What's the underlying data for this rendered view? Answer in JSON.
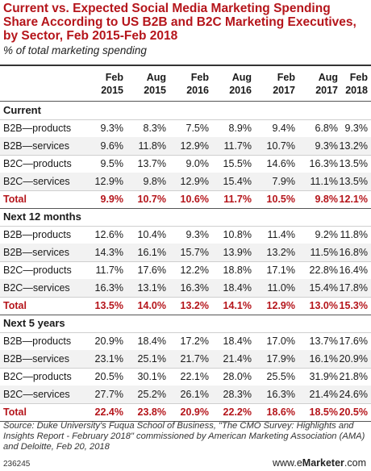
{
  "chart_data": {
    "type": "table",
    "title": "Current vs. Expected Social Media Marketing Spending Share According to US B2B and B2C Marketing Executives, by Sector, Feb 2015-Feb 2018",
    "subtitle": "% of total marketing spending",
    "columns": [
      [
        "Feb",
        "2015"
      ],
      [
        "Aug",
        "2015"
      ],
      [
        "Feb",
        "2016"
      ],
      [
        "Aug",
        "2016"
      ],
      [
        "Feb",
        "2017"
      ],
      [
        "Aug",
        "2017"
      ],
      [
        "Feb",
        "2018"
      ]
    ],
    "sections": [
      {
        "name": "Current",
        "rows": [
          {
            "label": "B2B—products",
            "values": [
              "9.3%",
              "8.3%",
              "7.5%",
              "8.9%",
              "9.4%",
              "6.8%",
              "9.3%"
            ]
          },
          {
            "label": "B2B—services",
            "values": [
              "9.6%",
              "11.8%",
              "12.9%",
              "11.7%",
              "10.7%",
              "9.3%",
              "13.2%"
            ]
          },
          {
            "label": "B2C—products",
            "values": [
              "9.5%",
              "13.7%",
              "9.0%",
              "15.5%",
              "14.6%",
              "16.3%",
              "13.5%"
            ]
          },
          {
            "label": "B2C—services",
            "values": [
              "12.9%",
              "9.8%",
              "12.9%",
              "15.4%",
              "7.9%",
              "11.1%",
              "13.5%"
            ]
          }
        ],
        "total": {
          "label": "Total",
          "values": [
            "9.9%",
            "10.7%",
            "10.6%",
            "11.7%",
            "10.5%",
            "9.8%",
            "12.1%"
          ]
        }
      },
      {
        "name": "Next 12 months",
        "rows": [
          {
            "label": "B2B—products",
            "values": [
              "12.6%",
              "10.4%",
              "9.3%",
              "10.8%",
              "11.4%",
              "9.2%",
              "11.8%"
            ]
          },
          {
            "label": "B2B—services",
            "values": [
              "14.3%",
              "16.1%",
              "15.7%",
              "13.9%",
              "13.2%",
              "11.5%",
              "16.8%"
            ]
          },
          {
            "label": "B2C—products",
            "values": [
              "11.7%",
              "17.6%",
              "12.2%",
              "18.8%",
              "17.1%",
              "22.8%",
              "16.4%"
            ]
          },
          {
            "label": "B2C—services",
            "values": [
              "16.3%",
              "13.1%",
              "16.3%",
              "18.4%",
              "11.0%",
              "15.4%",
              "17.8%"
            ]
          }
        ],
        "total": {
          "label": "Total",
          "values": [
            "13.5%",
            "14.0%",
            "13.2%",
            "14.1%",
            "12.9%",
            "13.0%",
            "15.3%"
          ]
        }
      },
      {
        "name": "Next 5 years",
        "rows": [
          {
            "label": "B2B—products",
            "values": [
              "20.9%",
              "18.4%",
              "17.2%",
              "18.4%",
              "17.0%",
              "13.7%",
              "17.6%"
            ]
          },
          {
            "label": "B2B—services",
            "values": [
              "23.1%",
              "25.1%",
              "21.7%",
              "21.4%",
              "17.9%",
              "16.1%",
              "20.9%"
            ]
          },
          {
            "label": "B2C—products",
            "values": [
              "20.5%",
              "30.1%",
              "22.1%",
              "28.0%",
              "25.5%",
              "31.9%",
              "21.8%"
            ]
          },
          {
            "label": "B2C—services",
            "values": [
              "27.7%",
              "25.2%",
              "26.1%",
              "28.3%",
              "16.3%",
              "21.4%",
              "24.6%"
            ]
          }
        ],
        "total": {
          "label": "Total",
          "values": [
            "22.4%",
            "23.8%",
            "20.9%",
            "22.2%",
            "18.6%",
            "18.5%",
            "20.5%"
          ]
        }
      }
    ]
  },
  "source": "Source: Duke University's Fuqua School of Business, \"The CMO Survey: Highlights and Insights Report - February 2018\" commissioned by American Marketing Association (AMA) and Deloitte, Feb 20, 2018",
  "footer_id": "236245",
  "brand": {
    "prefix": "www.",
    "e": "e",
    "name": "Marketer",
    "suffix": ".com"
  },
  "colors": {
    "accent": "#b5151b",
    "shade": "#f2f2f2"
  }
}
